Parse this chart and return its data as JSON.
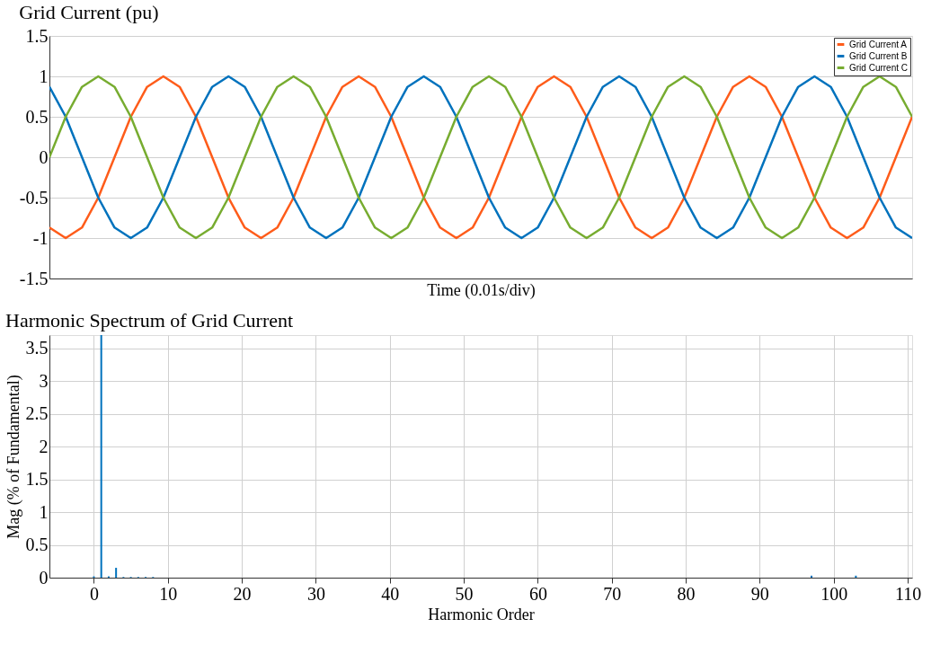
{
  "chart_data": [
    {
      "type": "line",
      "title": "Grid Current (pu)",
      "xlabel": "Time (0.01s/div)",
      "categories": [
        null,
        null,
        null,
        null,
        null,
        null,
        null,
        null,
        null,
        null,
        null,
        null,
        null,
        null,
        null,
        null,
        null,
        null,
        null,
        null,
        null,
        null,
        null,
        null,
        null,
        null,
        null,
        null,
        null,
        null,
        null,
        null,
        null,
        null,
        null,
        null,
        null,
        null,
        null,
        null,
        null,
        null,
        null,
        null,
        null,
        null,
        null,
        null,
        null,
        null,
        null,
        null,
        null,
        null
      ],
      "series": [
        {
          "name": "Grid Current A",
          "color": "#fe5c1a",
          "values": [
            -0.87,
            -1,
            -0.87,
            -0.5,
            0,
            0.5,
            0.87,
            1,
            0.87,
            0.5,
            0,
            -0.5,
            -0.87,
            -1,
            -0.87,
            -0.5,
            0,
            0.5,
            0.87,
            1,
            0.87,
            0.5,
            0,
            -0.5,
            -0.87,
            -1,
            -0.87,
            -0.5,
            0,
            0.5,
            0.87,
            1,
            0.87,
            0.5,
            0,
            -0.5,
            -0.87,
            -1,
            -0.87,
            -0.5,
            0,
            0.5,
            0.87,
            1,
            0.87,
            0.5,
            0,
            -0.5,
            -0.87,
            -1,
            -0.87,
            -0.5,
            0,
            0.5
          ]
        },
        {
          "name": "Grid Current B",
          "color": "#0072bd",
          "values": [
            0.87,
            0.5,
            0,
            -0.5,
            -0.87,
            -1,
            -0.87,
            -0.5,
            0,
            0.5,
            0.87,
            1,
            0.87,
            0.5,
            0,
            -0.5,
            -0.87,
            -1,
            -0.87,
            -0.5,
            0,
            0.5,
            0.87,
            1,
            0.87,
            0.5,
            0,
            -0.5,
            -0.87,
            -1,
            -0.87,
            -0.5,
            0,
            0.5,
            0.87,
            1,
            0.87,
            0.5,
            0,
            -0.5,
            -0.87,
            -1,
            -0.87,
            -0.5,
            0,
            0.5,
            0.87,
            1,
            0.87,
            0.5,
            0,
            -0.5,
            -0.87,
            -1
          ]
        },
        {
          "name": "Grid Current C",
          "color": "#77ac30",
          "values": [
            0,
            0.5,
            0.87,
            1,
            0.87,
            0.5,
            0,
            -0.5,
            -0.87,
            -1,
            -0.87,
            -0.5,
            0,
            0.5,
            0.87,
            1,
            0.87,
            0.5,
            0,
            -0.5,
            -0.87,
            -1,
            -0.87,
            -0.5,
            0,
            0.5,
            0.87,
            1,
            0.87,
            0.5,
            0,
            -0.5,
            -0.87,
            -1,
            -0.87,
            -0.5,
            0,
            0.5,
            0.87,
            1,
            0.87,
            0.5,
            0,
            -0.5,
            -0.87,
            -1,
            -0.87,
            -0.5,
            0,
            0.5,
            0.87,
            1,
            0.87,
            0.5
          ]
        }
      ],
      "ylim": [
        -1.5,
        1.5
      ],
      "yticks": [
        -1.5,
        -1,
        -0.5,
        0,
        0.5,
        1,
        1.5
      ],
      "tick_labels": "y",
      "grid": "y",
      "legend": "top right",
      "marker": "none",
      "line_style": "solid"
    },
    {
      "type": "bar",
      "title": "Harmonic Spectrum of Grid Current",
      "xlabel": "Harmonic Order",
      "ylabel": "Mag (% of Fundamental)",
      "x": [
        0,
        1,
        2,
        3,
        4,
        5,
        6,
        7,
        8,
        97,
        103
      ],
      "series": [
        {
          "color": "#0072bd",
          "values": [
            0.02,
            3.7,
            0.02,
            0.15,
            0.01,
            0.01,
            0.01,
            0.01,
            0.01,
            0.03,
            0.03
          ]
        }
      ],
      "xlim": [
        -5.4,
        110
      ],
      "xticks": [
        0,
        10,
        20,
        30,
        40,
        50,
        60,
        70,
        80,
        90,
        100,
        110
      ],
      "ylim": [
        0,
        3.7
      ],
      "yticks": [
        0,
        0.5,
        1,
        1.5,
        2,
        2.5,
        3,
        3.5
      ],
      "grid": true
    }
  ]
}
